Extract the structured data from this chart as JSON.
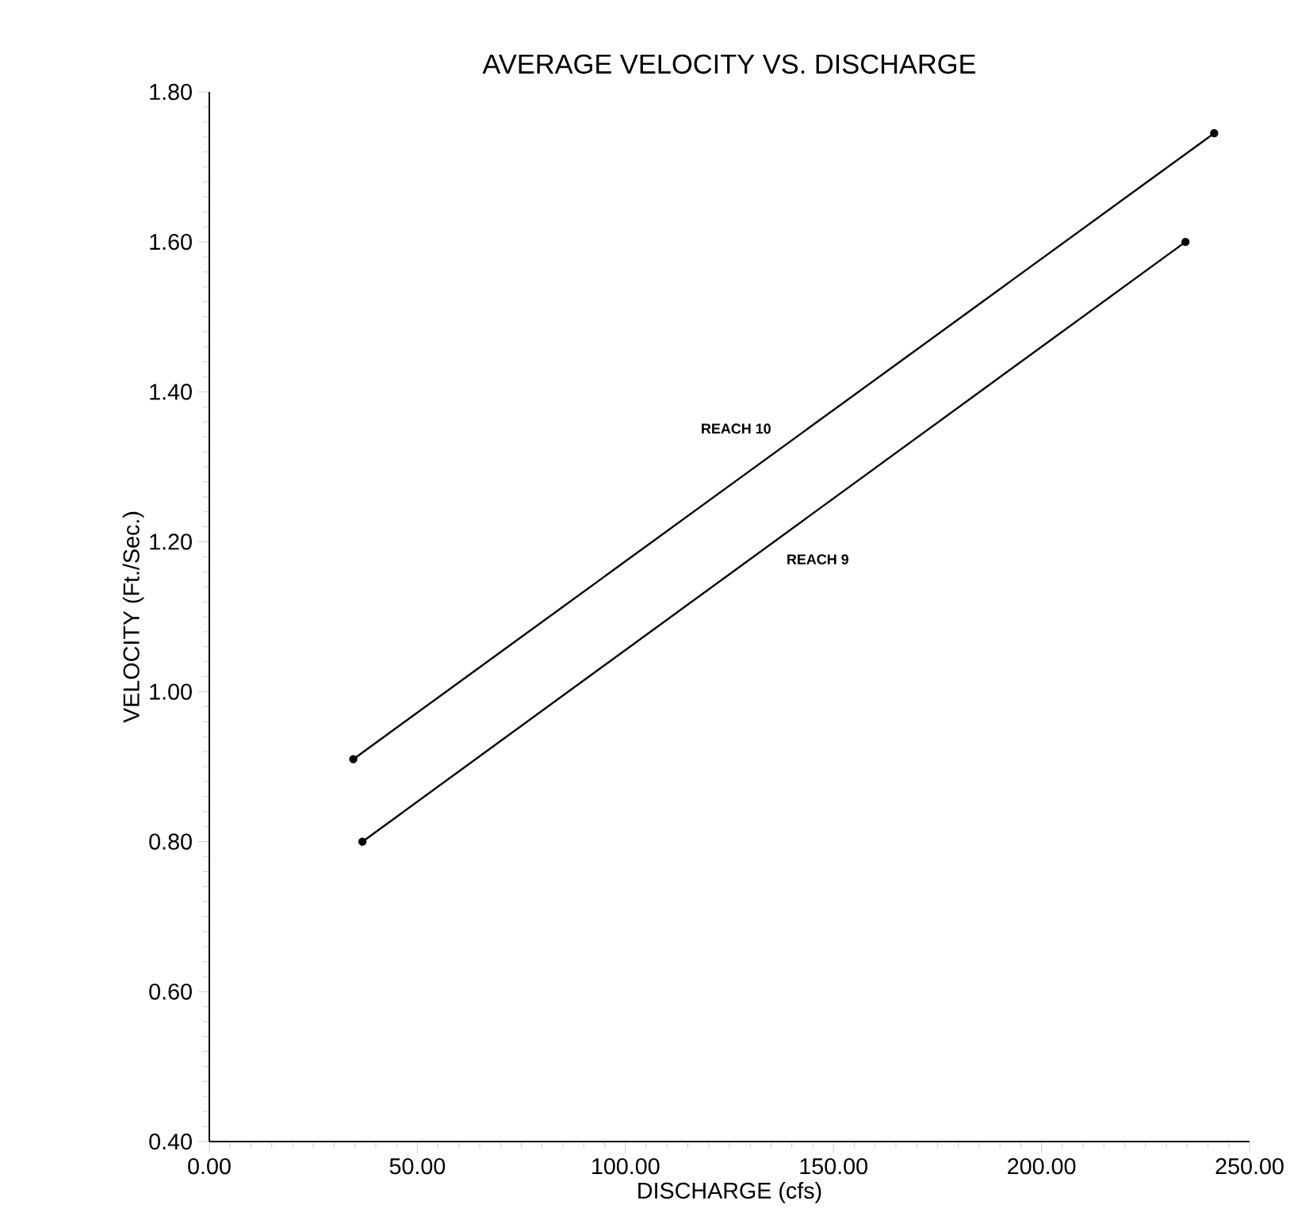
{
  "chart_data": {
    "type": "line",
    "title": "AVERAGE VELOCITY VS. DISCHARGE",
    "xlabel": "DISCHARGE (cfs)",
    "ylabel": "VELOCITY (Ft./Sec.)",
    "series": [
      {
        "name": "REACH 10",
        "color": "#000000",
        "x": [
          34.6,
          241.5
        ],
        "values": [
          0.91,
          1.745
        ]
      },
      {
        "name": "REACH 9",
        "color": "#000000",
        "x": [
          36.8,
          234.6
        ],
        "values": [
          0.8,
          1.6
        ]
      }
    ],
    "xlim": [
      0,
      250
    ],
    "ylim": [
      0.4,
      1.8
    ],
    "xticks": [
      {
        "value": 0,
        "label": "0.00"
      },
      {
        "value": 50,
        "label": "50.00"
      },
      {
        "value": 100,
        "label": "100.00"
      },
      {
        "value": 150,
        "label": "150.00"
      },
      {
        "value": 200,
        "label": "200.00"
      },
      {
        "value": 250,
        "label": "250.00"
      }
    ],
    "yticks": [
      {
        "value": 0.4,
        "label": "0.40"
      },
      {
        "value": 0.6,
        "label": "0.60"
      },
      {
        "value": 0.8,
        "label": "0.80"
      },
      {
        "value": 1.0,
        "label": "1.00"
      },
      {
        "value": 1.2,
        "label": "1.20"
      },
      {
        "value": 1.4,
        "label": "1.40"
      },
      {
        "value": 1.6,
        "label": "1.60"
      },
      {
        "value": 1.8,
        "label": "1.80"
      }
    ],
    "marker": "circle",
    "line_style": "solid",
    "grid": false,
    "legend": false
  }
}
